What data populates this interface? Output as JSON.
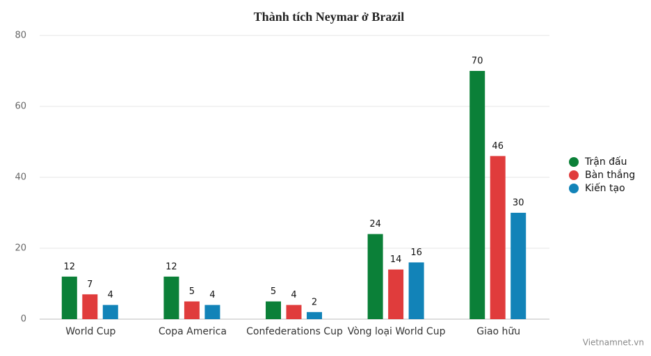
{
  "chart_data": {
    "type": "bar",
    "title": "Thành tích Neymar ở Brazil",
    "categories": [
      "World Cup",
      "Copa America",
      "Confederations Cup",
      "Vòng loại World Cup",
      "Giao hữu"
    ],
    "series": [
      {
        "name": "Trận đấu",
        "color": "#0b8038",
        "values": [
          12,
          12,
          5,
          24,
          70
        ]
      },
      {
        "name": "Bàn thắng",
        "color": "#e03c3c",
        "values": [
          7,
          5,
          4,
          14,
          46
        ]
      },
      {
        "name": "Kiến tạo",
        "color": "#1283b8",
        "values": [
          4,
          4,
          2,
          16,
          30
        ]
      }
    ],
    "ylim": [
      0,
      80
    ],
    "yticks": [
      0,
      20,
      40,
      60,
      80
    ],
    "grid": true,
    "legend": "right",
    "source": "Vietnamnet.vn"
  }
}
